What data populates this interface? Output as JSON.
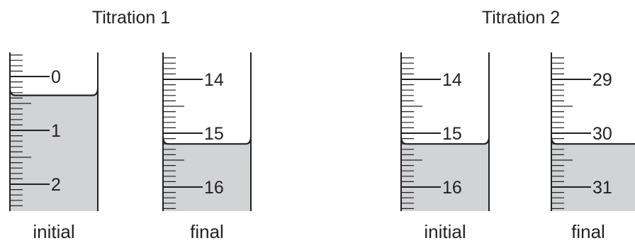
{
  "diagram": {
    "colors": {
      "liquid": "#d1d3d4",
      "ink": "#231f20",
      "background": "#ffffff"
    },
    "titrations": [
      {
        "title": "Titration 1",
        "burettes": [
          {
            "caption": "initial",
            "labels": [
              "0",
              "1",
              "2"
            ],
            "reading": 0.35
          },
          {
            "caption": "final",
            "labels": [
              "14",
              "15",
              "16"
            ],
            "reading": 15.2
          }
        ]
      },
      {
        "title": "Titration 2",
        "burettes": [
          {
            "caption": "initial",
            "labels": [
              "14",
              "15",
              "16"
            ],
            "reading": 15.2
          },
          {
            "caption": "final",
            "labels": [
              "29",
              "30",
              "31"
            ],
            "reading": 30.2
          }
        ]
      }
    ]
  }
}
